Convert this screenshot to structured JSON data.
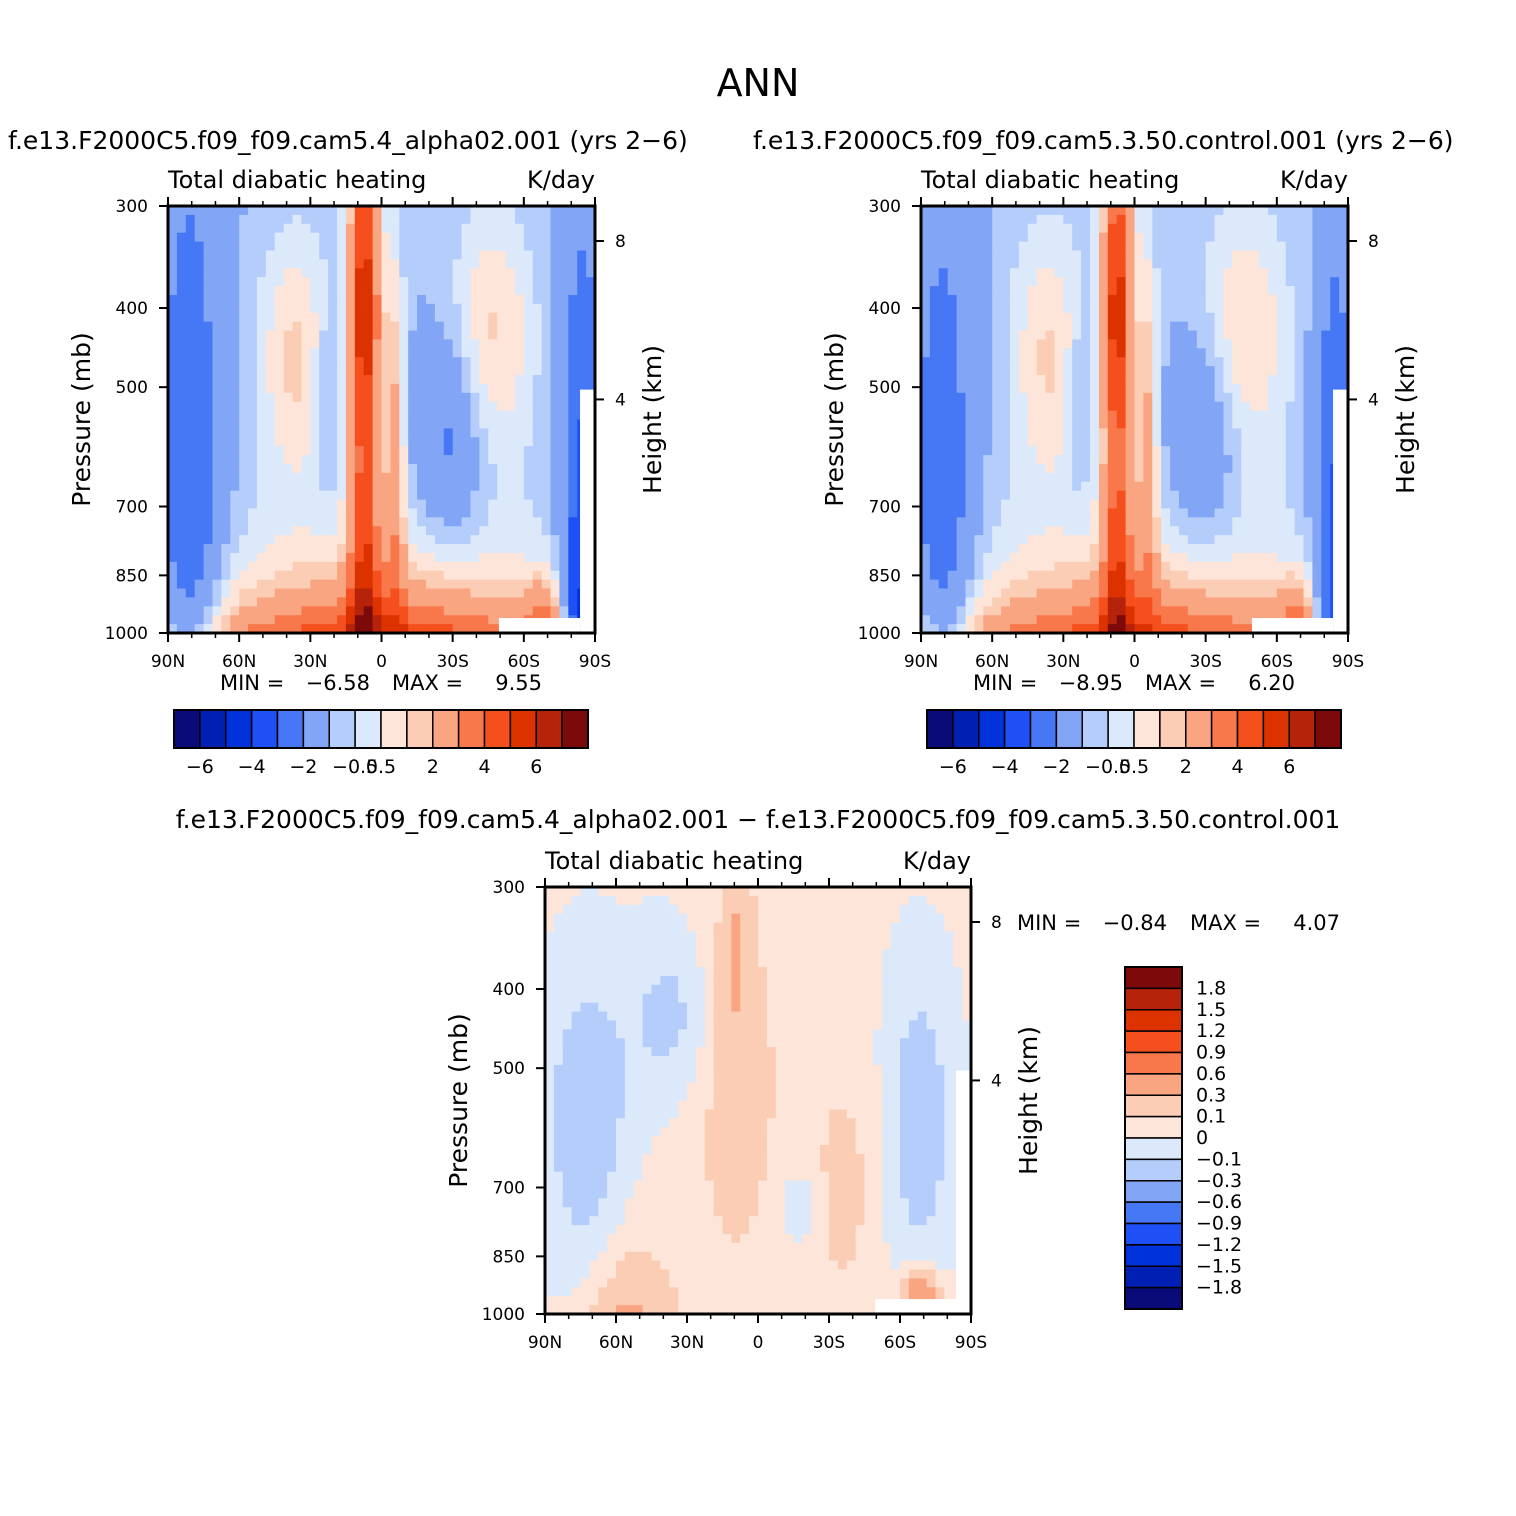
{
  "figure": {
    "title": "ANN",
    "panel1_title": "f.e13.F2000C5.f09_f09.cam5.4_alpha02.001  (yrs  2−6)",
    "panel2_title": "f.e13.F2000C5.f09_f09.cam5.3.50.control.001  (yrs  2−6)",
    "panel3_title": "f.e13.F2000C5.f09_f09.cam5.4_alpha02.001  −  f.e13.F2000C5.f09_f09.cam5.3.50.control.001"
  },
  "chart_data": [
    {
      "type": "heatmap",
      "panel": "case",
      "title": "Total diabatic heating",
      "units": "K/day",
      "ylabel": "Pressure (mb)",
      "y2label": "Height (km)",
      "x_ticks": [
        "90N",
        "60N",
        "30N",
        "0",
        "30S",
        "60S",
        "90S"
      ],
      "x_range": [
        90,
        -90
      ],
      "y_ticks": [
        300,
        400,
        500,
        700,
        850,
        1000
      ],
      "y_range": [
        1000,
        300
      ],
      "y2_ticks": [
        8,
        4
      ],
      "min_label": "MIN  =",
      "min_value": "−6.58",
      "max_label": "MAX  =",
      "max_value": "9.55",
      "levels": [
        -6,
        -5,
        -4,
        -3,
        -2,
        -1,
        -0.5,
        0,
        0.5,
        1,
        2,
        3,
        4,
        5,
        6
      ],
      "colorbar_labels": [
        "−6",
        "−4",
        "−2",
        "−0.5",
        "0.5",
        "2",
        "4",
        "6"
      ],
      "colors": [
        "#0a0a78",
        "#0020b4",
        "#0032dc",
        "#1e50f5",
        "#4678f5",
        "#82a5f5",
        "#b4cdfa",
        "#dce9fa",
        "#fde6d9",
        "#fbcdb4",
        "#f9a582",
        "#f8784b",
        "#f54f1e",
        "#dc3200",
        "#b4230a",
        "#7d0a0a"
      ]
    },
    {
      "type": "heatmap",
      "panel": "control",
      "title": "Total diabatic heating",
      "units": "K/day",
      "ylabel": "Pressure (mb)",
      "y2label": "Height (km)",
      "x_ticks": [
        "90N",
        "60N",
        "30N",
        "0",
        "30S",
        "60S",
        "90S"
      ],
      "x_range": [
        90,
        -90
      ],
      "y_ticks": [
        300,
        400,
        500,
        700,
        850,
        1000
      ],
      "y_range": [
        1000,
        300
      ],
      "y2_ticks": [
        8,
        4
      ],
      "min_label": "MIN  =",
      "min_value": "−8.95",
      "max_label": "MAX  =",
      "max_value": "6.20",
      "levels": [
        -6,
        -5,
        -4,
        -3,
        -2,
        -1,
        -0.5,
        0,
        0.5,
        1,
        2,
        3,
        4,
        5,
        6
      ],
      "colorbar_labels": [
        "−6",
        "−4",
        "−2",
        "−0.5",
        "0.5",
        "2",
        "4",
        "6"
      ],
      "colors": [
        "#0a0a78",
        "#0020b4",
        "#0032dc",
        "#1e50f5",
        "#4678f5",
        "#82a5f5",
        "#b4cdfa",
        "#dce9fa",
        "#fde6d9",
        "#fbcdb4",
        "#f9a582",
        "#f8784b",
        "#f54f1e",
        "#dc3200",
        "#b4230a",
        "#7d0a0a"
      ]
    },
    {
      "type": "heatmap",
      "panel": "difference",
      "title": "Total diabatic heating",
      "units": "K/day",
      "ylabel": "Pressure (mb)",
      "y2label": "Height (km)",
      "x_ticks": [
        "90N",
        "60N",
        "30N",
        "0",
        "30S",
        "60S",
        "90S"
      ],
      "x_range": [
        90,
        -90
      ],
      "y_ticks": [
        300,
        400,
        500,
        700,
        850,
        1000
      ],
      "y_range": [
        1000,
        300
      ],
      "y2_ticks": [
        8,
        4
      ],
      "min_label": "MIN  =",
      "min_value": "−0.84",
      "max_label": "MAX  =",
      "max_value": "4.07",
      "levels": [
        -1.8,
        -1.5,
        -1.2,
        -0.9,
        -0.6,
        -0.3,
        -0.1,
        0,
        0.1,
        0.3,
        0.6,
        0.9,
        1.2,
        1.5,
        1.8
      ],
      "colorbar_labels": [
        "1.8",
        "1.5",
        "1.2",
        "0.9",
        "0.6",
        "0.3",
        "0.1",
        "0",
        "−0.1",
        "−0.3",
        "−0.6",
        "−0.9",
        "−1.2",
        "−1.5",
        "−1.8"
      ],
      "colors": [
        "#0a0a78",
        "#0020b4",
        "#0032dc",
        "#1e50f5",
        "#4678f5",
        "#82a5f5",
        "#b4cdfa",
        "#dce9fa",
        "#fde6d9",
        "#fbcdb4",
        "#f9a582",
        "#f8784b",
        "#f54f1e",
        "#dc3200",
        "#b4230a",
        "#7d0a0a"
      ]
    }
  ]
}
